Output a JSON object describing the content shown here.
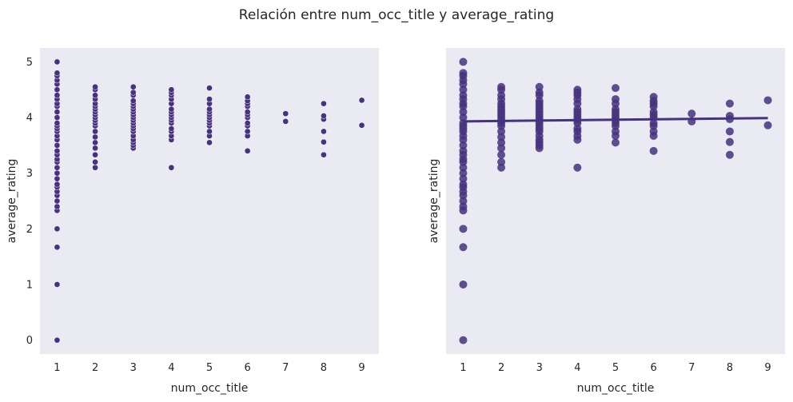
{
  "suptitle": "Relación entre num_occ_title y average_rating",
  "colors": {
    "panel_bg": "#eaeaf2",
    "point": "#46327e",
    "line": "#46327e"
  },
  "chart_data": [
    {
      "type": "scatter",
      "xlabel": "num_occ_title",
      "ylabel": "average_rating",
      "xlim": [
        0.55,
        9.45
      ],
      "ylim": [
        -0.25,
        5.25
      ],
      "xticks": [
        1,
        2,
        3,
        4,
        5,
        6,
        7,
        8,
        9
      ],
      "yticks": [
        0,
        1,
        2,
        3,
        4,
        5
      ],
      "grid": false,
      "series": [
        {
          "points": [
            [
              1,
              0
            ],
            [
              1,
              1
            ],
            [
              1,
              1.67
            ],
            [
              1,
              2
            ],
            [
              1,
              2.33
            ],
            [
              1,
              2.4
            ],
            [
              1,
              2.5
            ],
            [
              1,
              2.6
            ],
            [
              1,
              2.67
            ],
            [
              1,
              2.75
            ],
            [
              1,
              2.8
            ],
            [
              1,
              2.9
            ],
            [
              1,
              3
            ],
            [
              1,
              3.1
            ],
            [
              1,
              3.2
            ],
            [
              1,
              3.25
            ],
            [
              1,
              3.33
            ],
            [
              1,
              3.4
            ],
            [
              1,
              3.5
            ],
            [
              1,
              3.6
            ],
            [
              1,
              3.67
            ],
            [
              1,
              3.75
            ],
            [
              1,
              3.8
            ],
            [
              1,
              3.85
            ],
            [
              1,
              3.9
            ],
            [
              1,
              4
            ],
            [
              1,
              4.1
            ],
            [
              1,
              4.2
            ],
            [
              1,
              4.25
            ],
            [
              1,
              4.33
            ],
            [
              1,
              4.4
            ],
            [
              1,
              4.5
            ],
            [
              1,
              4.6
            ],
            [
              1,
              4.67
            ],
            [
              1,
              4.75
            ],
            [
              1,
              4.8
            ],
            [
              1,
              5
            ],
            [
              2,
              3.1
            ],
            [
              2,
              3.2
            ],
            [
              2,
              3.33
            ],
            [
              2,
              3.45
            ],
            [
              2,
              3.55
            ],
            [
              2,
              3.65
            ],
            [
              2,
              3.75
            ],
            [
              2,
              3.85
            ],
            [
              2,
              3.9
            ],
            [
              2,
              3.95
            ],
            [
              2,
              4
            ],
            [
              2,
              4.05
            ],
            [
              2,
              4.1
            ],
            [
              2,
              4.15
            ],
            [
              2,
              4.2
            ],
            [
              2,
              4.25
            ],
            [
              2,
              4.33
            ],
            [
              2,
              4.4
            ],
            [
              2,
              4.5
            ],
            [
              2,
              4.55
            ],
            [
              3,
              3.45
            ],
            [
              3,
              3.5
            ],
            [
              3,
              3.55
            ],
            [
              3,
              3.6
            ],
            [
              3,
              3.67
            ],
            [
              3,
              3.75
            ],
            [
              3,
              3.8
            ],
            [
              3,
              3.85
            ],
            [
              3,
              3.9
            ],
            [
              3,
              3.95
            ],
            [
              3,
              4
            ],
            [
              3,
              4.05
            ],
            [
              3,
              4.1
            ],
            [
              3,
              4.15
            ],
            [
              3,
              4.2
            ],
            [
              3,
              4.25
            ],
            [
              3,
              4.3
            ],
            [
              3,
              4.4
            ],
            [
              3,
              4.45
            ],
            [
              3,
              4.55
            ],
            [
              4,
              3.1
            ],
            [
              4,
              3.6
            ],
            [
              4,
              3.67
            ],
            [
              4,
              3.75
            ],
            [
              4,
              3.8
            ],
            [
              4,
              3.9
            ],
            [
              4,
              3.95
            ],
            [
              4,
              4
            ],
            [
              4,
              4.05
            ],
            [
              4,
              4.1
            ],
            [
              4,
              4.15
            ],
            [
              4,
              4.25
            ],
            [
              4,
              4.33
            ],
            [
              4,
              4.4
            ],
            [
              4,
              4.45
            ],
            [
              4,
              4.5
            ],
            [
              5,
              3.55
            ],
            [
              5,
              3.67
            ],
            [
              5,
              3.75
            ],
            [
              5,
              3.85
            ],
            [
              5,
              3.9
            ],
            [
              5,
              3.95
            ],
            [
              5,
              4
            ],
            [
              5,
              4.05
            ],
            [
              5,
              4.1
            ],
            [
              5,
              4.15
            ],
            [
              5,
              4.25
            ],
            [
              5,
              4.33
            ],
            [
              5,
              4.53
            ],
            [
              6,
              3.4
            ],
            [
              6,
              3.67
            ],
            [
              6,
              3.75
            ],
            [
              6,
              3.85
            ],
            [
              6,
              3.9
            ],
            [
              6,
              4
            ],
            [
              6,
              4.05
            ],
            [
              6,
              4.1
            ],
            [
              6,
              4.2
            ],
            [
              6,
              4.25
            ],
            [
              6,
              4.3
            ],
            [
              6,
              4.37
            ],
            [
              7,
              3.93
            ],
            [
              7,
              4.07
            ],
            [
              8,
              3.33
            ],
            [
              8,
              3.56
            ],
            [
              8,
              3.75
            ],
            [
              8,
              3.97
            ],
            [
              8,
              4.03
            ],
            [
              8,
              4.25
            ],
            [
              9,
              3.86
            ],
            [
              9,
              4.31
            ]
          ]
        }
      ]
    },
    {
      "type": "scatter",
      "subtype": "regression",
      "xlabel": "num_occ_title",
      "ylabel": "average_rating",
      "xlim": [
        0.55,
        9.45
      ],
      "ylim": [
        -0.25,
        5.25
      ],
      "xticks": [
        1,
        2,
        3,
        4,
        5,
        6,
        7,
        8,
        9
      ],
      "yticks": [],
      "grid": false,
      "regression_line": {
        "x": [
          1,
          9
        ],
        "y": [
          3.93,
          3.99
        ]
      },
      "series": [
        {
          "points": [
            [
              1,
              0
            ],
            [
              1,
              1
            ],
            [
              1,
              1.67
            ],
            [
              1,
              2
            ],
            [
              1,
              2.33
            ],
            [
              1,
              2.4
            ],
            [
              1,
              2.5
            ],
            [
              1,
              2.6
            ],
            [
              1,
              2.67
            ],
            [
              1,
              2.75
            ],
            [
              1,
              2.8
            ],
            [
              1,
              2.9
            ],
            [
              1,
              3
            ],
            [
              1,
              3.1
            ],
            [
              1,
              3.2
            ],
            [
              1,
              3.25
            ],
            [
              1,
              3.33
            ],
            [
              1,
              3.4
            ],
            [
              1,
              3.5
            ],
            [
              1,
              3.6
            ],
            [
              1,
              3.67
            ],
            [
              1,
              3.75
            ],
            [
              1,
              3.8
            ],
            [
              1,
              3.85
            ],
            [
              1,
              3.9
            ],
            [
              1,
              4
            ],
            [
              1,
              4.1
            ],
            [
              1,
              4.2
            ],
            [
              1,
              4.25
            ],
            [
              1,
              4.33
            ],
            [
              1,
              4.4
            ],
            [
              1,
              4.5
            ],
            [
              1,
              4.6
            ],
            [
              1,
              4.67
            ],
            [
              1,
              4.75
            ],
            [
              1,
              4.8
            ],
            [
              1,
              5
            ],
            [
              2,
              3.1
            ],
            [
              2,
              3.2
            ],
            [
              2,
              3.33
            ],
            [
              2,
              3.45
            ],
            [
              2,
              3.55
            ],
            [
              2,
              3.65
            ],
            [
              2,
              3.75
            ],
            [
              2,
              3.85
            ],
            [
              2,
              3.9
            ],
            [
              2,
              3.95
            ],
            [
              2,
              4
            ],
            [
              2,
              4.05
            ],
            [
              2,
              4.1
            ],
            [
              2,
              4.15
            ],
            [
              2,
              4.2
            ],
            [
              2,
              4.25
            ],
            [
              2,
              4.33
            ],
            [
              2,
              4.4
            ],
            [
              2,
              4.5
            ],
            [
              2,
              4.55
            ],
            [
              3,
              3.45
            ],
            [
              3,
              3.5
            ],
            [
              3,
              3.55
            ],
            [
              3,
              3.6
            ],
            [
              3,
              3.67
            ],
            [
              3,
              3.75
            ],
            [
              3,
              3.8
            ],
            [
              3,
              3.85
            ],
            [
              3,
              3.9
            ],
            [
              3,
              3.95
            ],
            [
              3,
              4
            ],
            [
              3,
              4.05
            ],
            [
              3,
              4.1
            ],
            [
              3,
              4.15
            ],
            [
              3,
              4.2
            ],
            [
              3,
              4.25
            ],
            [
              3,
              4.3
            ],
            [
              3,
              4.4
            ],
            [
              3,
              4.45
            ],
            [
              3,
              4.55
            ],
            [
              4,
              3.1
            ],
            [
              4,
              3.6
            ],
            [
              4,
              3.67
            ],
            [
              4,
              3.75
            ],
            [
              4,
              3.8
            ],
            [
              4,
              3.9
            ],
            [
              4,
              3.95
            ],
            [
              4,
              4
            ],
            [
              4,
              4.05
            ],
            [
              4,
              4.1
            ],
            [
              4,
              4.15
            ],
            [
              4,
              4.25
            ],
            [
              4,
              4.33
            ],
            [
              4,
              4.4
            ],
            [
              4,
              4.45
            ],
            [
              4,
              4.5
            ],
            [
              5,
              3.55
            ],
            [
              5,
              3.67
            ],
            [
              5,
              3.75
            ],
            [
              5,
              3.85
            ],
            [
              5,
              3.9
            ],
            [
              5,
              3.95
            ],
            [
              5,
              4
            ],
            [
              5,
              4.05
            ],
            [
              5,
              4.1
            ],
            [
              5,
              4.15
            ],
            [
              5,
              4.25
            ],
            [
              5,
              4.33
            ],
            [
              5,
              4.53
            ],
            [
              6,
              3.4
            ],
            [
              6,
              3.67
            ],
            [
              6,
              3.75
            ],
            [
              6,
              3.85
            ],
            [
              6,
              3.9
            ],
            [
              6,
              4
            ],
            [
              6,
              4.05
            ],
            [
              6,
              4.1
            ],
            [
              6,
              4.2
            ],
            [
              6,
              4.25
            ],
            [
              6,
              4.3
            ],
            [
              6,
              4.37
            ],
            [
              7,
              3.93
            ],
            [
              7,
              4.07
            ],
            [
              8,
              3.33
            ],
            [
              8,
              3.56
            ],
            [
              8,
              3.75
            ],
            [
              8,
              3.97
            ],
            [
              8,
              4.03
            ],
            [
              8,
              4.25
            ],
            [
              9,
              3.86
            ],
            [
              9,
              4.31
            ]
          ]
        }
      ]
    }
  ]
}
